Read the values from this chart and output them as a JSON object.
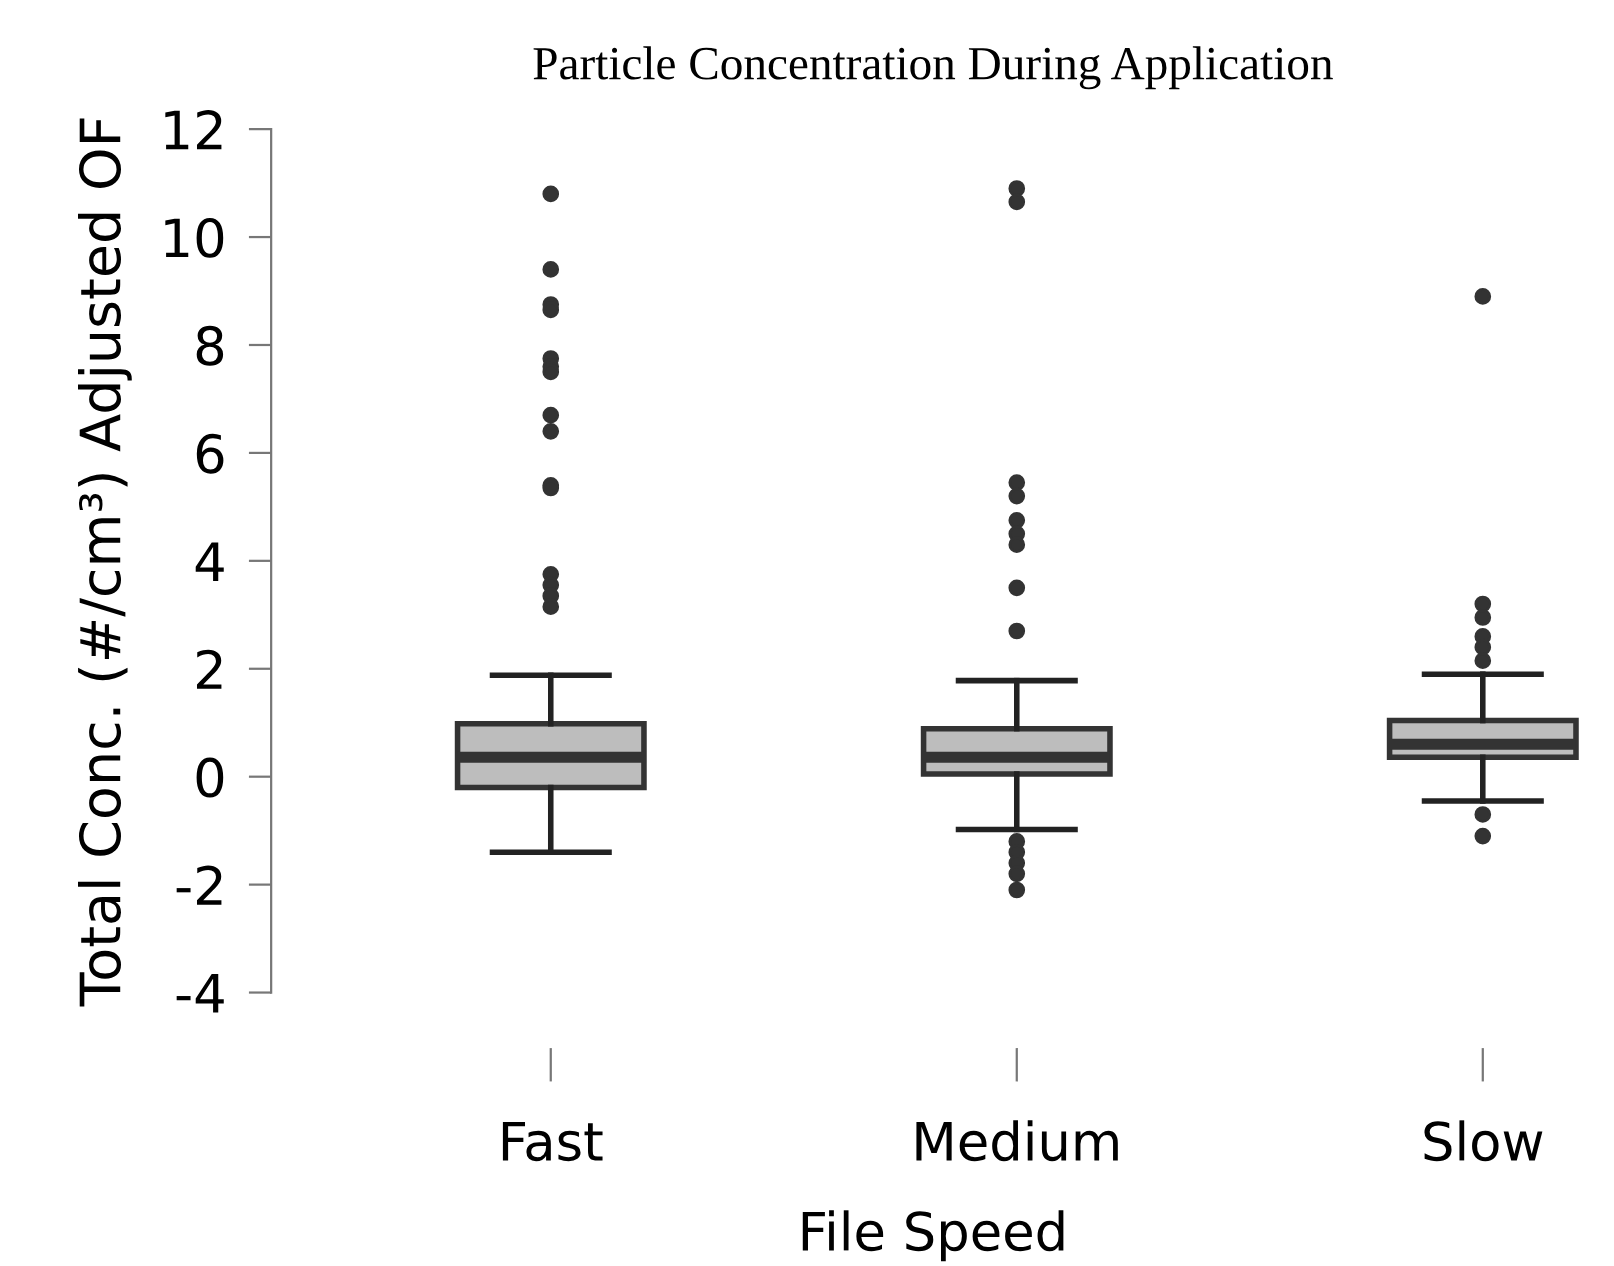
{
  "chart_data": {
    "type": "box",
    "title": "Particle Concentration During Application",
    "xlabel": "File Speed",
    "ylabel": "Total Conc. (#/cm³) Adjusted OF",
    "categories": [
      "Fast",
      "Medium",
      "Slow"
    ],
    "boxes": [
      {
        "low": -1.4,
        "q1": -0.2,
        "median": 0.36,
        "q3": 0.98,
        "high": 1.88,
        "outliers": [
          10.8,
          9.4,
          8.75,
          8.65,
          7.75,
          7.6,
          7.5,
          6.7,
          6.4,
          5.4,
          5.35,
          3.75,
          3.55,
          3.35,
          3.15
        ]
      },
      {
        "low": -0.98,
        "q1": 0.05,
        "median": 0.36,
        "q3": 0.89,
        "high": 1.78,
        "outliers": [
          10.9,
          10.65,
          5.45,
          5.2,
          4.75,
          4.5,
          4.3,
          3.5,
          2.7,
          -1.2,
          -1.4,
          -1.6,
          -1.8,
          -2.1
        ]
      },
      {
        "low": -0.45,
        "q1": 0.36,
        "median": 0.6,
        "q3": 1.04,
        "high": 1.9,
        "outliers": [
          8.9,
          3.2,
          2.95,
          2.6,
          2.4,
          2.15,
          -0.7,
          -1.1
        ]
      }
    ],
    "color": "#bdbdbd",
    "ylim": [
      -4,
      12
    ],
    "yticks": [
      -4,
      -2,
      0,
      2,
      4,
      6,
      8,
      10,
      12
    ],
    "grid": false
  }
}
